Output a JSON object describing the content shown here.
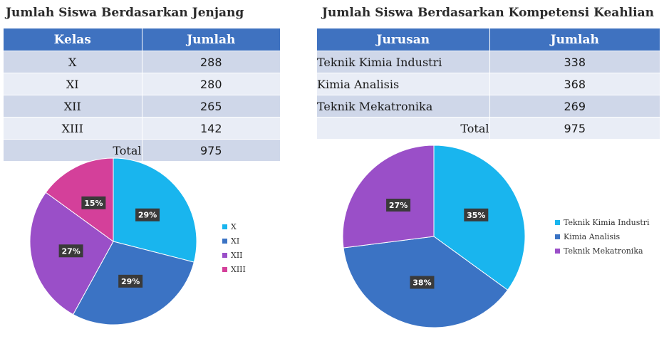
{
  "left": {
    "title": "Jumlah Siswa Berdasarkan Jenjang",
    "table": {
      "headers": [
        "Kelas",
        "Jumlah"
      ],
      "rows": [
        [
          "X",
          "288"
        ],
        [
          "XI",
          "280"
        ],
        [
          "XII",
          "265"
        ],
        [
          "XIII",
          "142"
        ]
      ],
      "total_label": "Total",
      "total_value": "975"
    }
  },
  "right": {
    "title": "Jumlah Siswa Berdasarkan Kompetensi Keahlian",
    "table": {
      "headers": [
        "Jurusan",
        "Jumlah"
      ],
      "rows": [
        [
          "Teknik Kimia Industri",
          "338"
        ],
        [
          "Kimia Analisis",
          "368"
        ],
        [
          "Teknik Mekatronika",
          "269"
        ]
      ],
      "total_label": "Total",
      "total_value": "975"
    }
  },
  "chart_data": [
    {
      "type": "pie",
      "title": "",
      "categories": [
        "X",
        "XI",
        "XII",
        "XIII"
      ],
      "values": [
        29,
        29,
        27,
        15
      ],
      "labels": [
        "29%",
        "29%",
        "27%",
        "15%"
      ],
      "colors": [
        "#19b5ee",
        "#3b73c4",
        "#9a4fc8",
        "#d4409a"
      ],
      "legend": "right"
    },
    {
      "type": "pie",
      "title": "",
      "categories": [
        "Teknik Kimia Industri",
        "Kimia Analisis",
        "Teknik Mekatronika"
      ],
      "values": [
        35,
        38,
        27
      ],
      "labels": [
        "35%",
        "38%",
        "27%"
      ],
      "colors": [
        "#19b5ee",
        "#3b73c4",
        "#9a4fc8"
      ],
      "legend": "right"
    }
  ]
}
